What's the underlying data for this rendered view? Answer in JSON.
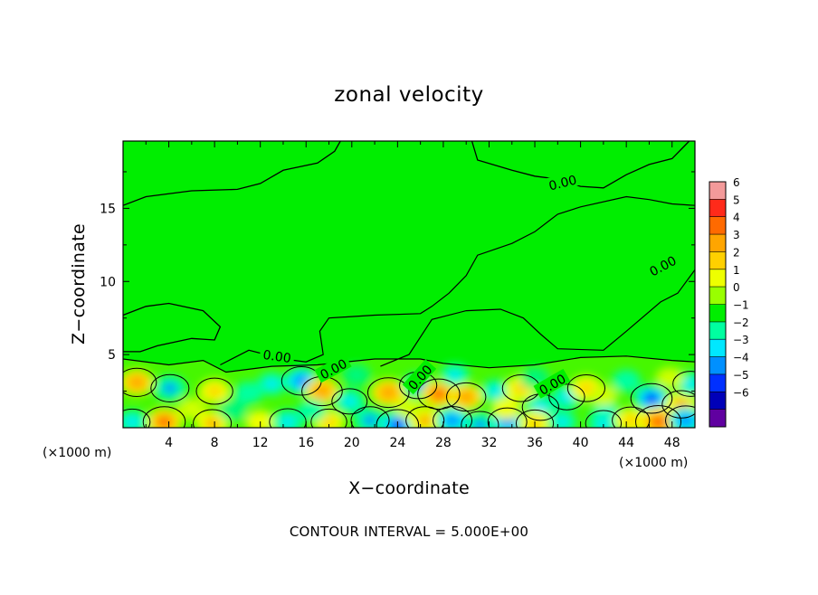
{
  "chart_data": {
    "type": "heatmap",
    "title": "zonal velocity",
    "xlabel": "X−coordinate",
    "ylabel": "Z−coordinate",
    "x_unit_left": "(×1000 m)",
    "x_unit_right": "(×1000 m)",
    "xlim": [
      0,
      50
    ],
    "ylim": [
      0,
      19.6
    ],
    "x_ticks": [
      "4",
      "8",
      "12",
      "16",
      "20",
      "24",
      "28",
      "32",
      "36",
      "40",
      "44",
      "48"
    ],
    "y_ticks": [
      "5",
      "10",
      "15"
    ],
    "colorbar": {
      "levels": [
        "6",
        "5",
        "4",
        "3",
        "2",
        "1",
        "0",
        "−1",
        "−2",
        "−3",
        "−4",
        "−5",
        "−6"
      ],
      "colors": [
        "#f39a9a",
        "#ff2a1a",
        "#ff6a00",
        "#ffa500",
        "#ffd000",
        "#eeff00",
        "#99ff00",
        "#00ee00",
        "#00ffa0",
        "#00e8ff",
        "#0090ff",
        "#0030ff",
        "#0000b8",
        "#6000a0"
      ]
    },
    "contour_label": "0.00",
    "contour_interval_text": "CONTOUR INTERVAL = 5.000E+00",
    "contour_zero_upper": [
      [
        0,
        15.2
      ],
      [
        2,
        15.8
      ],
      [
        6,
        16.2
      ],
      [
        10,
        16.3
      ],
      [
        12,
        16.7
      ],
      [
        14,
        17.6
      ],
      [
        17,
        18.1
      ],
      [
        18.5,
        18.9
      ],
      [
        19,
        19.6
      ]
    ],
    "contour_zero_right": [
      [
        30.5,
        19.6
      ],
      [
        31,
        18.3
      ],
      [
        34,
        17.6
      ],
      [
        36,
        17.2
      ],
      [
        38,
        17.0
      ],
      [
        40,
        16.5
      ],
      [
        42,
        16.4
      ],
      [
        44,
        17.3
      ],
      [
        46,
        18.0
      ],
      [
        48,
        18.4
      ],
      [
        49,
        19.2
      ],
      [
        49.5,
        19.6
      ]
    ],
    "contour_zero_mid": [
      [
        0,
        7.7
      ],
      [
        2,
        8.3
      ],
      [
        4,
        8.5
      ],
      [
        7,
        8.0
      ],
      [
        8.5,
        6.9
      ],
      [
        8,
        6.0
      ],
      [
        6,
        6.1
      ],
      [
        3,
        5.6
      ],
      [
        1.5,
        5.2
      ],
      [
        0,
        5.2
      ]
    ],
    "boundary_sample": [
      [
        0,
        4.7
      ],
      [
        4,
        4.3
      ],
      [
        7,
        4.6
      ],
      [
        9,
        3.8
      ],
      [
        13,
        4.2
      ],
      [
        17,
        4.3
      ],
      [
        22,
        4.7
      ],
      [
        26,
        4.7
      ],
      [
        28,
        4.4
      ],
      [
        32,
        4.1
      ],
      [
        36,
        4.3
      ],
      [
        40,
        4.8
      ],
      [
        44,
        4.9
      ],
      [
        48,
        4.6
      ],
      [
        50,
        4.5
      ]
    ],
    "blobs": [
      {
        "x": 1.2,
        "z": 3.1,
        "v": 3.5
      },
      {
        "x": 4.1,
        "z": 2.7,
        "v": -3.2
      },
      {
        "x": 8.0,
        "z": 2.5,
        "v": 2.8
      },
      {
        "x": 11.0,
        "z": 2.4,
        "v": -1.8
      },
      {
        "x": 13.0,
        "z": 3.0,
        "v": -2.2
      },
      {
        "x": 15.6,
        "z": 3.2,
        "v": -3.6
      },
      {
        "x": 17.4,
        "z": 2.5,
        "v": 3.8
      },
      {
        "x": 19.8,
        "z": 1.8,
        "v": -2.5
      },
      {
        "x": 23.2,
        "z": 2.4,
        "v": 4.0
      },
      {
        "x": 25.8,
        "z": 2.9,
        "v": -3.0
      },
      {
        "x": 27.6,
        "z": 2.3,
        "v": 4.2
      },
      {
        "x": 30.0,
        "z": 2.1,
        "v": 3.5
      },
      {
        "x": 32.6,
        "z": 2.5,
        "v": -2.2
      },
      {
        "x": 34.8,
        "z": 2.7,
        "v": 3.0
      },
      {
        "x": 36.5,
        "z": 1.4,
        "v": -2.8
      },
      {
        "x": 38.8,
        "z": 2.1,
        "v": -2.6
      },
      {
        "x": 40.5,
        "z": 2.7,
        "v": 3.0
      },
      {
        "x": 42.2,
        "z": 1.0,
        "v": -2.2
      },
      {
        "x": 46.2,
        "z": 2.0,
        "v": -4.0
      },
      {
        "x": 48.8,
        "z": 1.6,
        "v": 3.2
      },
      {
        "x": 49.6,
        "z": 3.0,
        "v": -2.4
      },
      {
        "x": 3.6,
        "z": 0.4,
        "v": 4.2
      },
      {
        "x": 7.8,
        "z": 0.3,
        "v": 3.2
      },
      {
        "x": 12.0,
        "z": 0.4,
        "v": 2.0
      },
      {
        "x": 14.4,
        "z": 0.4,
        "v": -2.8
      },
      {
        "x": 18.0,
        "z": 0.4,
        "v": 2.6
      },
      {
        "x": 21.6,
        "z": 0.5,
        "v": -3.2
      },
      {
        "x": 24.0,
        "z": 0.2,
        "v": -4.2
      },
      {
        "x": 26.4,
        "z": 0.5,
        "v": 3.2
      },
      {
        "x": 28.8,
        "z": 0.5,
        "v": -3.4
      },
      {
        "x": 31.2,
        "z": 0.2,
        "v": -3.0
      },
      {
        "x": 33.6,
        "z": 0.4,
        "v": -3.4
      },
      {
        "x": 36.0,
        "z": 0.3,
        "v": 3.0
      },
      {
        "x": 38.4,
        "z": 0.4,
        "v": -2.0
      },
      {
        "x": 42.0,
        "z": 0.3,
        "v": -2.6
      },
      {
        "x": 44.4,
        "z": 0.5,
        "v": 3.0
      },
      {
        "x": 46.8,
        "z": 0.4,
        "v": 5.0
      },
      {
        "x": 49.2,
        "z": 0.5,
        "v": -3.8
      },
      {
        "x": 0.8,
        "z": 0.4,
        "v": -2.6
      },
      {
        "x": 9.6,
        "z": 1.2,
        "v": -1.6
      },
      {
        "x": 20.4,
        "z": 3.6,
        "v": -1.5
      },
      {
        "x": 29.0,
        "z": 3.6,
        "v": -2.0
      },
      {
        "x": 36.0,
        "z": 3.4,
        "v": -1.6
      },
      {
        "x": 44.0,
        "z": 3.2,
        "v": -1.8
      },
      {
        "x": 6.0,
        "z": 1.3,
        "v": 1.5
      },
      {
        "x": 16.5,
        "z": 1.2,
        "v": -1.7
      },
      {
        "x": 25.0,
        "z": 1.3,
        "v": 1.6
      },
      {
        "x": 33.5,
        "z": 1.3,
        "v": 1.7
      },
      {
        "x": 42.0,
        "z": 2.2,
        "v": 1.4
      },
      {
        "x": 47.8,
        "z": 3.4,
        "v": 1.3
      }
    ]
  }
}
